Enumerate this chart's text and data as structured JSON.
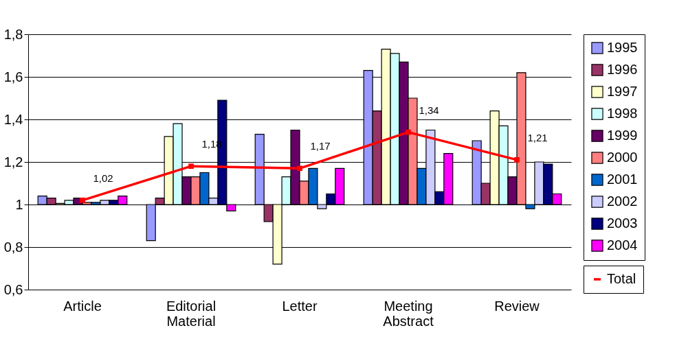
{
  "chart_data": {
    "type": "bar",
    "categories": [
      "Article",
      "Editorial Material",
      "Letter",
      "Meeting Abstract",
      "Review"
    ],
    "series": [
      {
        "name": "1995",
        "color": "#9999ff",
        "base": [
          1,
          1,
          1,
          1,
          1
        ],
        "values": [
          0.04,
          -0.17,
          0.33,
          0.63,
          0.3
        ]
      },
      {
        "name": "1996",
        "color": "#993366",
        "base": [
          1,
          1,
          1,
          1,
          1
        ],
        "values": [
          0.03,
          0.03,
          -0.08,
          0.44,
          0.1
        ]
      },
      {
        "name": "1997",
        "color": "#ffffcc",
        "base": [
          1,
          1,
          1,
          1,
          1
        ],
        "values": [
          0.005,
          0.32,
          -0.28,
          0.73,
          0.44
        ]
      },
      {
        "name": "1998",
        "color": "#ccffff",
        "base": [
          1,
          1,
          1,
          1,
          1
        ],
        "values": [
          0.02,
          0.38,
          0.13,
          0.71,
          0.37
        ]
      },
      {
        "name": "1999",
        "color": "#660066",
        "base": [
          1,
          1,
          1,
          1,
          1
        ],
        "values": [
          0.03,
          0.13,
          0.35,
          0.67,
          0.13
        ]
      },
      {
        "name": "2000",
        "color": "#ff8080",
        "base": [
          1,
          1,
          1,
          1,
          1
        ],
        "values": [
          0.01,
          0.13,
          0.11,
          0.5,
          0.62
        ]
      },
      {
        "name": "2001",
        "color": "#0066cc",
        "base": [
          1,
          1,
          1,
          1,
          1
        ],
        "values": [
          0.01,
          0.15,
          0.17,
          0.17,
          -0.02
        ]
      },
      {
        "name": "2002",
        "color": "#ccccff",
        "base": [
          1,
          1,
          1,
          1,
          1
        ],
        "values": [
          0.02,
          0.03,
          -0.02,
          0.35,
          0.2
        ]
      },
      {
        "name": "2003",
        "color": "#000080",
        "base": [
          1,
          1,
          1,
          1,
          1
        ],
        "values": [
          0.02,
          0.49,
          0.05,
          0.06,
          0.19
        ]
      },
      {
        "name": "2004",
        "color": "#ff00ff",
        "base": [
          1,
          1,
          1,
          1,
          1
        ],
        "values": [
          0.04,
          -0.03,
          0.17,
          0.24,
          0.05
        ]
      },
      {
        "name": "Total",
        "type": "line",
        "color": "#ff0000",
        "values": [
          1.02,
          1.18,
          1.17,
          1.34,
          1.21
        ],
        "value_labels": [
          "1,02",
          "1,18",
          "1,17",
          "1,34",
          "1,21"
        ]
      }
    ],
    "ylim": [
      0.6,
      1.8
    ],
    "yticks": [
      {
        "value": 0.6,
        "label": "0,6"
      },
      {
        "value": 0.8,
        "label": "0,8"
      },
      1,
      {
        "value": 1.2,
        "label": "1,2"
      },
      {
        "value": 1.4,
        "label": "1,4"
      },
      {
        "value": 1.6,
        "label": "1,6"
      },
      {
        "value": 1.8,
        "label": "1,8"
      }
    ],
    "grid": "y",
    "legend": "right",
    "marker": "square",
    "line_style": "solid"
  }
}
